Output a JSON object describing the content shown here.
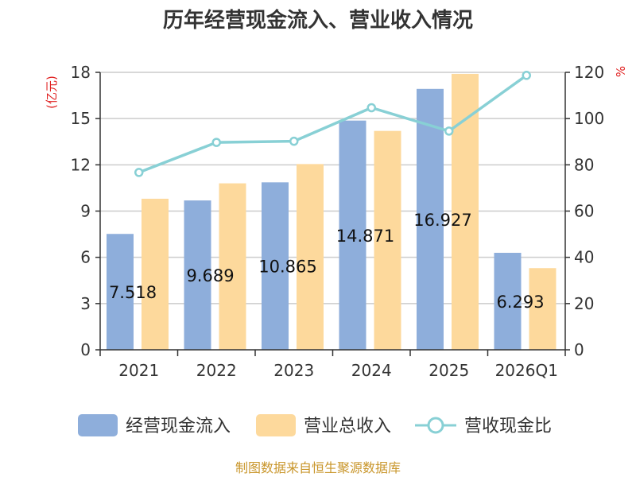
{
  "chart_data": {
    "type": "bar",
    "title": "历年经营现金流入、营业收入情况",
    "categories": [
      "2021",
      "2022",
      "2023",
      "2024",
      "2025",
      "2026Q1"
    ],
    "left_axis": {
      "unit": "(亿元)",
      "ylim": [
        0,
        18
      ],
      "ticks": [
        "0",
        "3",
        "6",
        "9",
        "12",
        "15",
        "18"
      ]
    },
    "right_axis": {
      "unit": "%",
      "ylim": [
        0,
        120
      ],
      "ticks": [
        "0",
        "20",
        "40",
        "60",
        "80",
        "100",
        "120"
      ]
    },
    "series": [
      {
        "name": "经营现金流入",
        "kind": "bar",
        "axis": "left",
        "values": [
          7.518,
          9.689,
          10.865,
          14.871,
          16.927,
          6.293
        ],
        "labels": [
          "7.518",
          "9.689",
          "10.865",
          "14.871",
          "16.927",
          "6.293"
        ]
      },
      {
        "name": "营业总收入",
        "kind": "bar",
        "axis": "left",
        "values": [
          9.8,
          10.8,
          12.05,
          14.2,
          17.9,
          5.3
        ]
      },
      {
        "name": "营收现金比",
        "kind": "line",
        "axis": "right",
        "values": [
          76.7,
          89.7,
          90.2,
          104.7,
          94.6,
          118.7
        ]
      }
    ],
    "grid": true,
    "legend_position": "bottom"
  },
  "colors": {
    "bar1": "#8eaedb",
    "bar2": "#fdd99c",
    "line": "#88d0d5"
  },
  "source": "制图数据来自恒生聚源数据库"
}
